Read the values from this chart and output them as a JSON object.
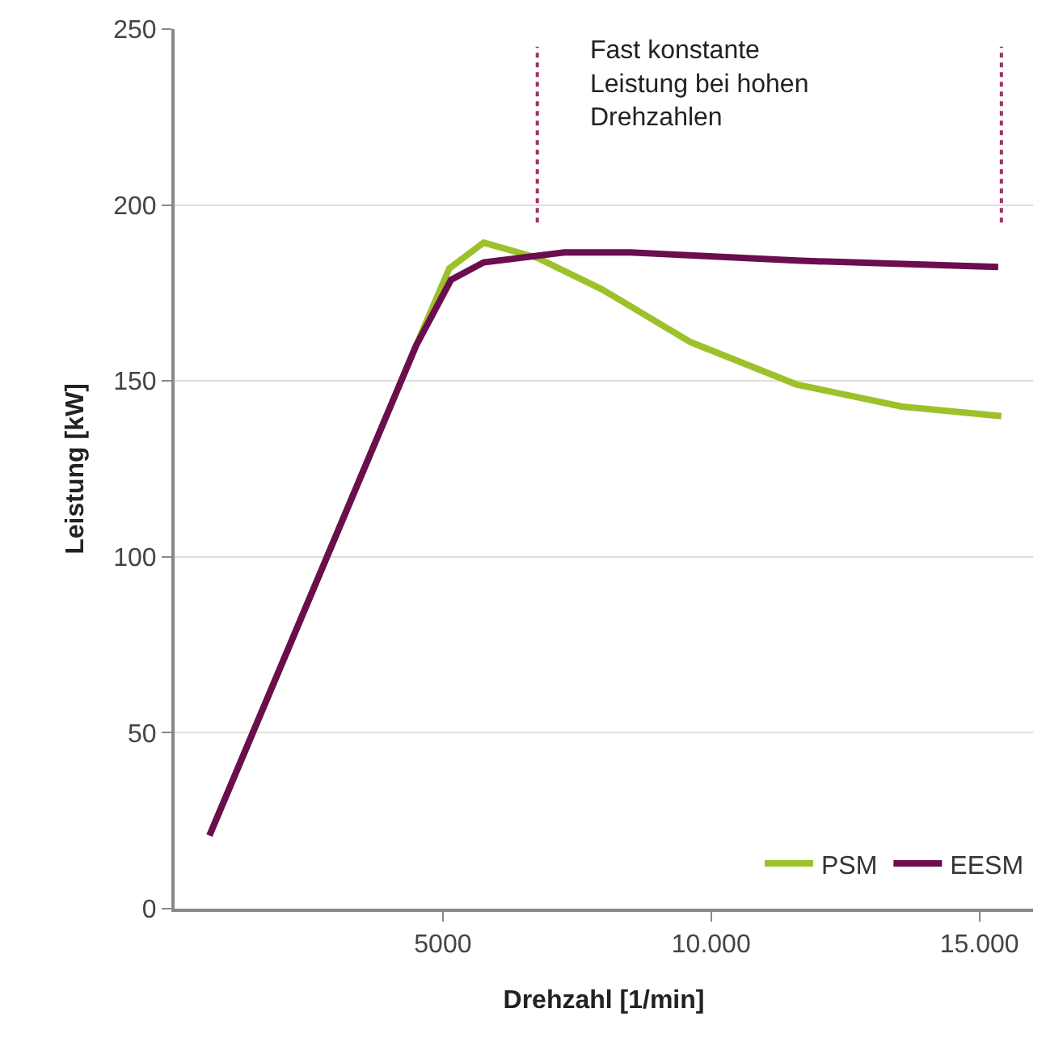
{
  "chart_data": {
    "type": "line",
    "xlabel": "Drehzahl [1/min]",
    "ylabel": "Leistung [kW]",
    "annotations": [
      "Fast konstante\nLeistung bei hohen\nDrehzahlen"
    ],
    "series": [
      {
        "name": "PSM",
        "color": "#9dc12a",
        "x": [
          650,
          4500,
          5120,
          5760,
          6760,
          7970,
          9620,
          11590,
          13560,
          15410
        ],
        "values": [
          20.8,
          160,
          182,
          189.3,
          185,
          176,
          161,
          149,
          142.7,
          140
        ]
      },
      {
        "name": "EESM",
        "color": "#6b0d4e",
        "x": [
          650,
          4500,
          5150,
          5760,
          7260,
          8500,
          11590,
          15350
        ],
        "values": [
          20.8,
          160,
          178.7,
          183.7,
          186.5,
          186.5,
          184.2,
          182.4
        ]
      }
    ],
    "ref_lines": [
      {
        "axis": "x",
        "value": 6760,
        "label": null,
        "color": "#a0306a",
        "line_style": "dotted"
      },
      {
        "axis": "x",
        "value": 15410,
        "label": null,
        "color": "#a0306a",
        "line_style": "dotted"
      }
    ],
    "xlim": [
      0,
      16000
    ],
    "xticks": [
      {
        "value": 5000,
        "label": "5000"
      },
      {
        "value": 10000,
        "label": "10.000"
      },
      {
        "value": 15000,
        "label": "15.000"
      }
    ],
    "ylim": [
      0,
      250
    ],
    "yticks": [
      0,
      50,
      100,
      150,
      200,
      250
    ],
    "grid": "y",
    "legend": "bottom right",
    "marker": "none",
    "line_style": "solid"
  }
}
